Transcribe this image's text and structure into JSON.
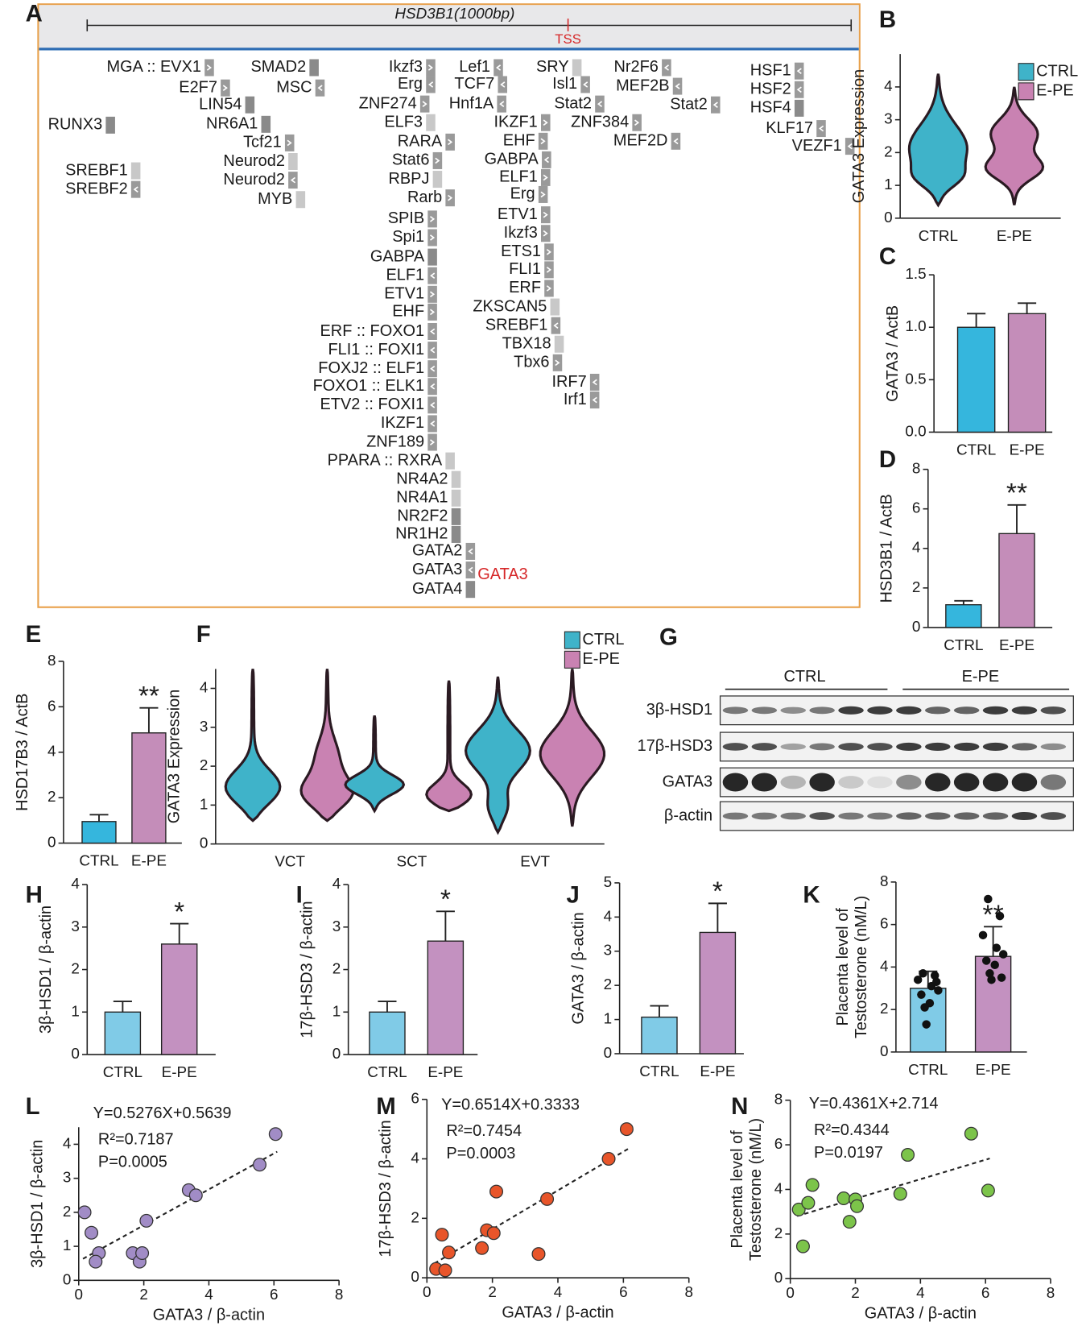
{
  "panel_labels": [
    "A",
    "B",
    "C",
    "D",
    "E",
    "F",
    "G",
    "H",
    "I",
    "J",
    "K",
    "L",
    "M",
    "N"
  ],
  "panel_a": {
    "title": "HSD3B1(1000bp)",
    "tss": "TSS",
    "highlight": "GATA3",
    "labels": [
      "MGA :: EVX1",
      "E2F7",
      "LIN54",
      "NR6A1",
      "RUNX3",
      "SMAD2",
      "MSC",
      "Tcf21",
      "Neurod2",
      "Neurod2",
      "MYB",
      "SREBF1",
      "SREBF2",
      "Ikzf3",
      "Erg",
      "ZNF274",
      "ELF3",
      "RARA",
      "Stat6",
      "RBPJ",
      "Rarb",
      "SPIB",
      "Spi1",
      "GABPA",
      "ELF1",
      "ETV1",
      "EHF",
      "ERF :: FOXO1",
      "FLI1 :: FOXI1",
      "FOXJ2 :: ELF1",
      "FOXO1 :: ELK1",
      "ETV2 :: FOXI1",
      "IKZF1",
      "ZNF189",
      "PPARA :: RXRA",
      "NR4A2",
      "NR4A1",
      "NR2F2",
      "NR1H2",
      "GATA2",
      "GATA3",
      "GATA4",
      "Lef1",
      "TCF7",
      "Hnf1A",
      "IKZF1",
      "EHF",
      "GABPA",
      "ELF1",
      "Erg",
      "ETV1",
      "Ikzf3",
      "ETS1",
      "FLI1",
      "ERF",
      "ZKSCAN5",
      "SREBF1",
      "TBX18",
      "Tbx6",
      "IRF7",
      "Irf1",
      "SRY",
      "Isl1",
      "Stat2",
      "ZNF384",
      "Nr2F6",
      "MEF2B",
      "MEF2D",
      "Stat2",
      "HSF1",
      "HSF2",
      "HSF4",
      "KLF17",
      "VEZF1"
    ]
  },
  "blot": {
    "groups": [
      "CTRL",
      "E-PE"
    ],
    "rows": [
      "3β-HSD1",
      "17β-HSD3",
      "GATA3",
      "β-actin"
    ]
  },
  "chart_data": [
    {
      "type": "violin",
      "ylabel": "GATA3 Expression",
      "categories": [
        "CTRL",
        "E-PE"
      ],
      "series": [
        {
          "name": "CTRL",
          "color": "#3fb3c9",
          "min": [
            0.4
          ],
          "max": [
            4.4
          ]
        },
        {
          "name": "E-PE",
          "color": "#c982b2",
          "min": [
            null,
            0.4
          ],
          "max": [
            null,
            4.0
          ]
        }
      ],
      "ylim": [
        0,
        5
      ],
      "yticks": [
        0,
        1,
        2,
        3,
        4
      ],
      "legend": "upper right"
    },
    {
      "type": "bar",
      "ylabel": "GATA3 / ActB",
      "categories": [
        "CTRL",
        "E-PE"
      ],
      "values": [
        1.0,
        1.13
      ],
      "errors": [
        0.13,
        0.1
      ],
      "colors": [
        "#35b6dd",
        "#c48db9"
      ],
      "ylim": [
        0,
        1.5
      ],
      "yticks": [
        {
          "value": 0,
          "label": "0.0"
        },
        0.5,
        {
          "value": 1,
          "label": "1.0"
        },
        1.5
      ]
    },
    {
      "type": "bar",
      "ylabel": "HSD3B1 / ActB",
      "categories": [
        "CTRL",
        "E-PE"
      ],
      "values": [
        1.15,
        4.75
      ],
      "errors": [
        0.2,
        1.45
      ],
      "colors": [
        "#35b6dd",
        "#c48db9"
      ],
      "ylim": [
        0,
        8
      ],
      "yticks": [
        0,
        2,
        4,
        6,
        8
      ],
      "annotations": [
        null,
        "**"
      ]
    },
    {
      "type": "bar",
      "ylabel": "HSD17B3 / ActB",
      "categories": [
        "CTRL",
        "E-PE"
      ],
      "values": [
        0.95,
        4.85
      ],
      "errors": [
        0.3,
        1.1
      ],
      "colors": [
        "#35b6dd",
        "#c48db9"
      ],
      "ylim": [
        0,
        8
      ],
      "yticks": [
        0,
        2,
        4,
        6,
        8
      ],
      "annotations": [
        null,
        "**"
      ]
    },
    {
      "type": "violin",
      "ylabel": "GATA3 Expression",
      "categories": [
        "VCT",
        "SCT",
        "EVT"
      ],
      "series": [
        {
          "name": "CTRL",
          "color": "#3fb3c9",
          "min": [
            0.6,
            0.85,
            0.3
          ],
          "max": [
            4.5,
            3.3,
            4.3
          ]
        },
        {
          "name": "E-PE",
          "color": "#c982b2",
          "min": [
            0.6,
            0.85,
            0.45
          ],
          "max": [
            4.5,
            4.2,
            4.5
          ]
        }
      ],
      "ylim": [
        0,
        4.5
      ],
      "yticks": [
        0,
        1,
        2,
        3,
        4
      ],
      "legend": "upper right"
    },
    {
      "type": "bar",
      "ylabel": "3β-HSD1 / β-actin",
      "categories": [
        "CTRL",
        "E-PE"
      ],
      "values": [
        1.0,
        2.6
      ],
      "errors": [
        0.25,
        0.48
      ],
      "colors": [
        "#80cbe7",
        "#c391c0"
      ],
      "ylim": [
        0,
        4
      ],
      "yticks": [
        0,
        1,
        2,
        3,
        4
      ],
      "annotations": [
        null,
        "*"
      ]
    },
    {
      "type": "bar",
      "ylabel": "17β-HSD3 / β-actin",
      "categories": [
        "CTRL",
        "E-PE"
      ],
      "values": [
        1.0,
        2.67
      ],
      "errors": [
        0.25,
        0.7
      ],
      "colors": [
        "#80cbe7",
        "#c391c0"
      ],
      "ylim": [
        0,
        4
      ],
      "yticks": [
        0,
        1,
        2,
        3,
        4
      ],
      "annotations": [
        null,
        "*"
      ]
    },
    {
      "type": "bar",
      "ylabel": "GATA3 / β-actin",
      "categories": [
        "CTRL",
        "E-PE"
      ],
      "values": [
        1.07,
        3.55
      ],
      "errors": [
        0.33,
        0.85
      ],
      "colors": [
        "#80cbe7",
        "#c391c0"
      ],
      "ylim": [
        0,
        5
      ],
      "yticks": [
        0,
        1,
        2,
        3,
        4,
        5
      ],
      "annotations": [
        null,
        "*"
      ]
    },
    {
      "type": "bar",
      "ylabel": [
        "Placenta level of",
        "Testosterone (nM/L)"
      ],
      "categories": [
        "CTRL",
        "E-PE"
      ],
      "values": [
        3.0,
        4.5
      ],
      "errors": [
        0.8,
        1.4
      ],
      "colors": [
        "#80cbe7",
        "#c391c0"
      ],
      "ylim": [
        0,
        8
      ],
      "yticks": [
        0,
        2,
        4,
        6,
        8
      ],
      "annotations": [
        null,
        "**"
      ],
      "points": [
        [
          3.7,
          3.6,
          3.4,
          3.1,
          2.9,
          2.7,
          2.3,
          2.1,
          1.3,
          3.3
        ],
        [
          7.2,
          6.4,
          5.5,
          4.9,
          4.6,
          4.3,
          4.1,
          3.7,
          3.4,
          3.5
        ]
      ]
    },
    {
      "type": "scatter",
      "ylabel": "3β-HSD1 / β-actin",
      "xlabel": "GATA3 / β-actin",
      "color": "#a18cc6",
      "x": [
        0.18,
        0.39,
        0.62,
        0.52,
        1.66,
        1.87,
        1.95,
        2.08,
        3.38,
        3.6,
        5.56,
        6.05
      ],
      "y": [
        2.0,
        1.4,
        0.8,
        0.55,
        0.8,
        0.55,
        0.8,
        1.75,
        2.65,
        2.5,
        3.4,
        4.3
      ],
      "xlim": [
        0,
        8
      ],
      "xticks": [
        0,
        2,
        4,
        6,
        8
      ],
      "ylim": [
        0,
        4.5
      ],
      "yticks": [
        0,
        1,
        2,
        3,
        4
      ],
      "fit": {
        "slope": 0.5276,
        "intercept": 0.5639
      },
      "equation": "Y=0.5276X+0.5639",
      "r2": "R²=0.7187",
      "p": "P=0.0005"
    },
    {
      "type": "scatter",
      "ylabel": "17β-HSD3 / β-actin",
      "xlabel": "GATA3 / β-actin",
      "color": "#e8552a",
      "x": [
        0.28,
        0.56,
        0.46,
        0.67,
        1.68,
        1.83,
        2.04,
        2.12,
        3.41,
        3.67,
        5.55,
        6.1
      ],
      "y": [
        0.3,
        0.25,
        1.45,
        0.85,
        1.0,
        1.6,
        1.5,
        2.9,
        0.8,
        2.65,
        4.0,
        5.0
      ],
      "xlim": [
        0,
        8
      ],
      "xticks": [
        0,
        2,
        4,
        6,
        8
      ],
      "ylim": [
        0,
        6
      ],
      "yticks": [
        0,
        2,
        4,
        6
      ],
      "fit": {
        "slope": 0.6514,
        "intercept": 0.3333
      },
      "equation": "Y=0.6514X+0.3333",
      "r2": "R²=0.7454",
      "p": "P=0.0003"
    },
    {
      "type": "scatter",
      "ylabel": [
        "Placenta level of",
        "Testosterone (nM/L)"
      ],
      "xlabel": "GATA3 / β-actin",
      "color": "#7cc44a",
      "x": [
        0.26,
        0.55,
        0.68,
        0.39,
        1.64,
        2.0,
        2.05,
        1.82,
        3.38,
        3.61,
        5.56,
        6.08
      ],
      "y": [
        3.1,
        3.4,
        4.2,
        1.45,
        3.6,
        3.55,
        3.25,
        2.55,
        3.8,
        5.55,
        6.5,
        3.95
      ],
      "xlim": [
        0,
        8
      ],
      "xticks": [
        0,
        2,
        4,
        6,
        8
      ],
      "ylim": [
        0,
        8
      ],
      "yticks": [
        0,
        2,
        4,
        6,
        8
      ],
      "fit": {
        "slope": 0.4361,
        "intercept": 2.714
      },
      "equation": "Y=0.4361X+2.714",
      "r2": "R²=0.4344",
      "p": "P=0.0197"
    }
  ]
}
